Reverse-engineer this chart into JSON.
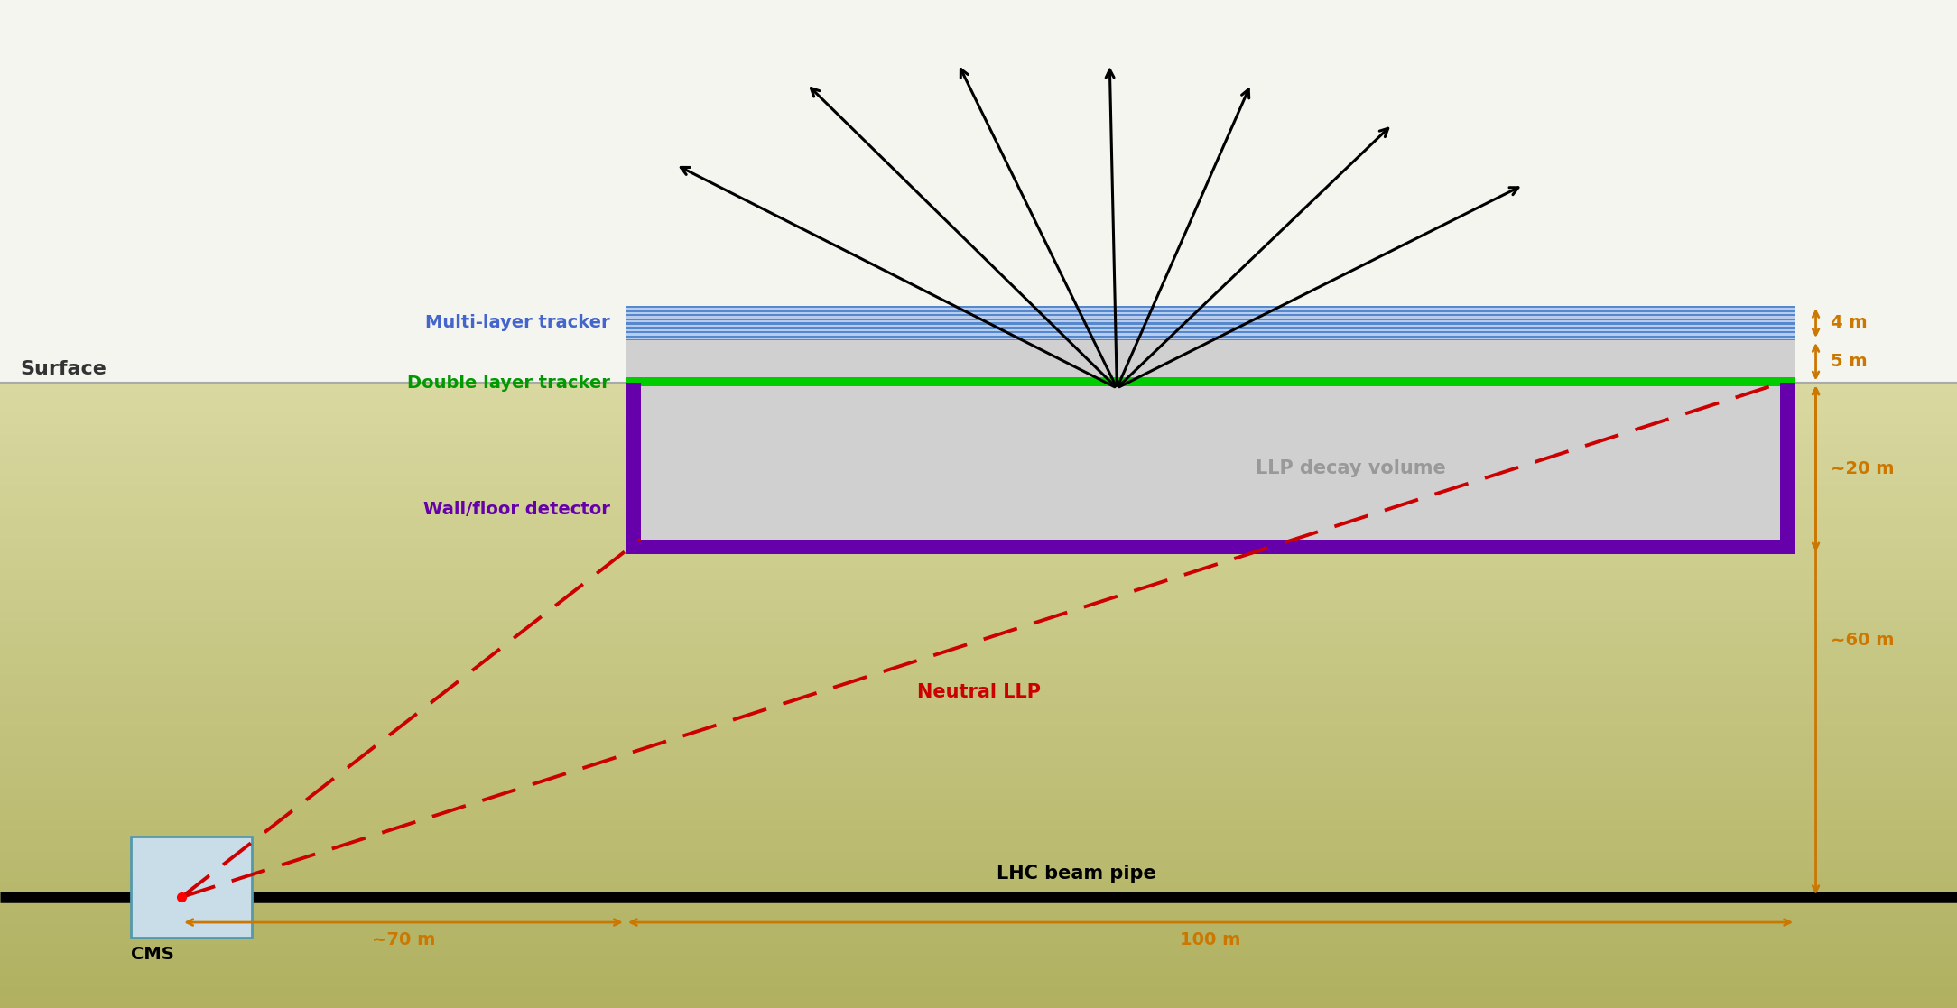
{
  "fig_width": 21.68,
  "fig_height": 11.17,
  "colors": {
    "orange": "#cc7700",
    "green": "#00aa00",
    "blue_tracker_bg": "#5588cc",
    "blue_tracker_stripe": "#88aaee",
    "white_stripe": "#ffffff",
    "purple": "#6600aa",
    "gray_decay": "#d0d0d0",
    "black": "#000000",
    "red": "#cc0000",
    "cms_box_fill": "#c8dde8",
    "cms_box_edge": "#5599aa",
    "sky": "#f5f5f0",
    "ground_top": "#d8d8a0",
    "ground_bot": "#b8b870"
  },
  "labels": {
    "surface": "Surface",
    "cms": "CMS",
    "beam_pipe": "LHC beam pipe",
    "neutral_llp": "Neutral LLP",
    "llp_decay": "LLP decay volume",
    "multi_tracker": "Multi-layer tracker",
    "double_tracker": "Double layer tracker",
    "wall_floor": "Wall/floor detector",
    "dim_4m": "4 m",
    "dim_5m": "5 m",
    "dim_20m": "~20 m",
    "dim_60m": "~60 m",
    "dim_70m": "~70 m",
    "dim_100m": "100 m"
  },
  "fontsizes": {
    "surface": 16,
    "cms": 14,
    "beam_pipe": 15,
    "neutral_llp": 15,
    "llp_decay": 15,
    "tracker_label": 14,
    "dim": 14
  }
}
